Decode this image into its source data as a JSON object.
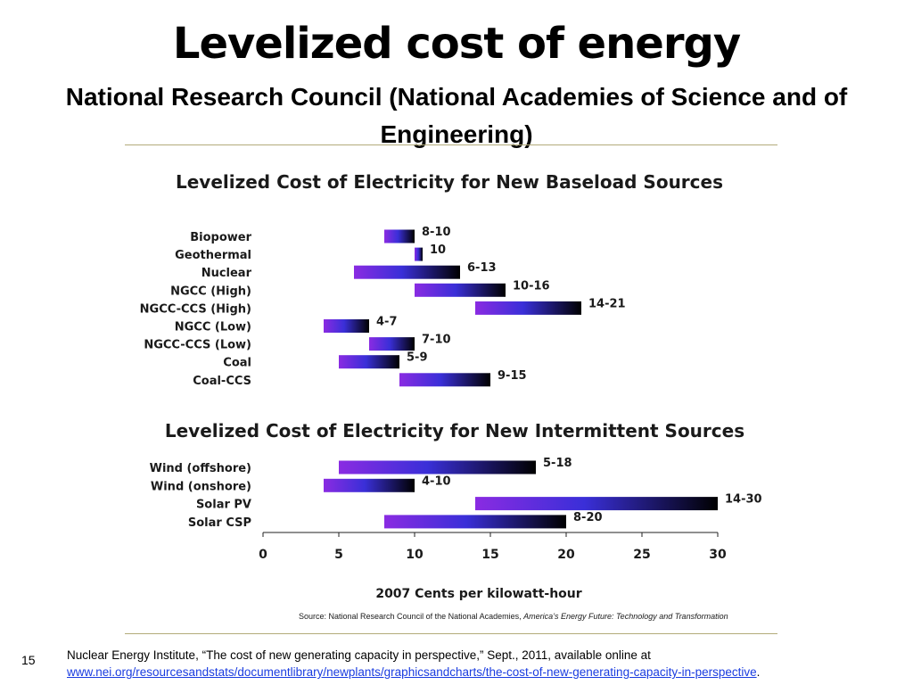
{
  "slide": {
    "title": "Levelized cost of energy",
    "subtitle": "National Research Council (National Academies of Science and of Engineering)",
    "number": "15"
  },
  "footer": {
    "citation": "Nuclear Energy Institute, “The cost of new generating capacity in perspective,” Sept., 2011, available online at",
    "link": "www.nei.org/resourcesandstats/documentlibrary/newplants/graphicsandcharts/the-cost-of-new-generating-capacity-in-perspective",
    "link_suffix": "."
  },
  "colors": {
    "bar_start": "#8a2be2",
    "bar_mid": "#3a2fd8",
    "bar_end": "#000000",
    "rule": "#b3ab7a",
    "link": "#1a3ce0"
  },
  "chart_data": [
    {
      "type": "bar",
      "orientation": "horizontal-range",
      "title": "Levelized Cost of Electricity for New Baseload Sources",
      "categories": [
        "Biopower",
        "Geothermal",
        "Nuclear",
        "NGCC (High)",
        "NGCC-CCS (High)",
        "NGCC (Low)",
        "NGCC-CCS (Low)",
        "Coal",
        "Coal-CCS"
      ],
      "ranges": [
        [
          8,
          10
        ],
        [
          10,
          10
        ],
        [
          6,
          13
        ],
        [
          10,
          16
        ],
        [
          14,
          21
        ],
        [
          4,
          7
        ],
        [
          7,
          10
        ],
        [
          5,
          9
        ],
        [
          9,
          15
        ]
      ],
      "labels": [
        "8-10",
        "10",
        "6-13",
        "10-16",
        "14-21",
        "4-7",
        "7-10",
        "5-9",
        "9-15"
      ]
    },
    {
      "type": "bar",
      "orientation": "horizontal-range",
      "title": "Levelized Cost of Electricity for New Intermittent Sources",
      "categories": [
        "Wind (offshore)",
        "Wind (onshore)",
        "Solar PV",
        "Solar CSP"
      ],
      "ranges": [
        [
          5,
          18
        ],
        [
          4,
          10
        ],
        [
          14,
          30
        ],
        [
          8,
          20
        ]
      ],
      "labels": [
        "5-18",
        "4-10",
        "14-30",
        "8-20"
      ],
      "xlabel": "2007 Cents per kilowatt-hour",
      "xlim": [
        0,
        30
      ],
      "xticks": [
        "0",
        "5",
        "10",
        "15",
        "20",
        "25",
        "30"
      ],
      "source_prefix": "Source:  National Research Council of the National Academies, ",
      "source_italic": "America’s Energy Future: Technology and Transformation"
    }
  ]
}
